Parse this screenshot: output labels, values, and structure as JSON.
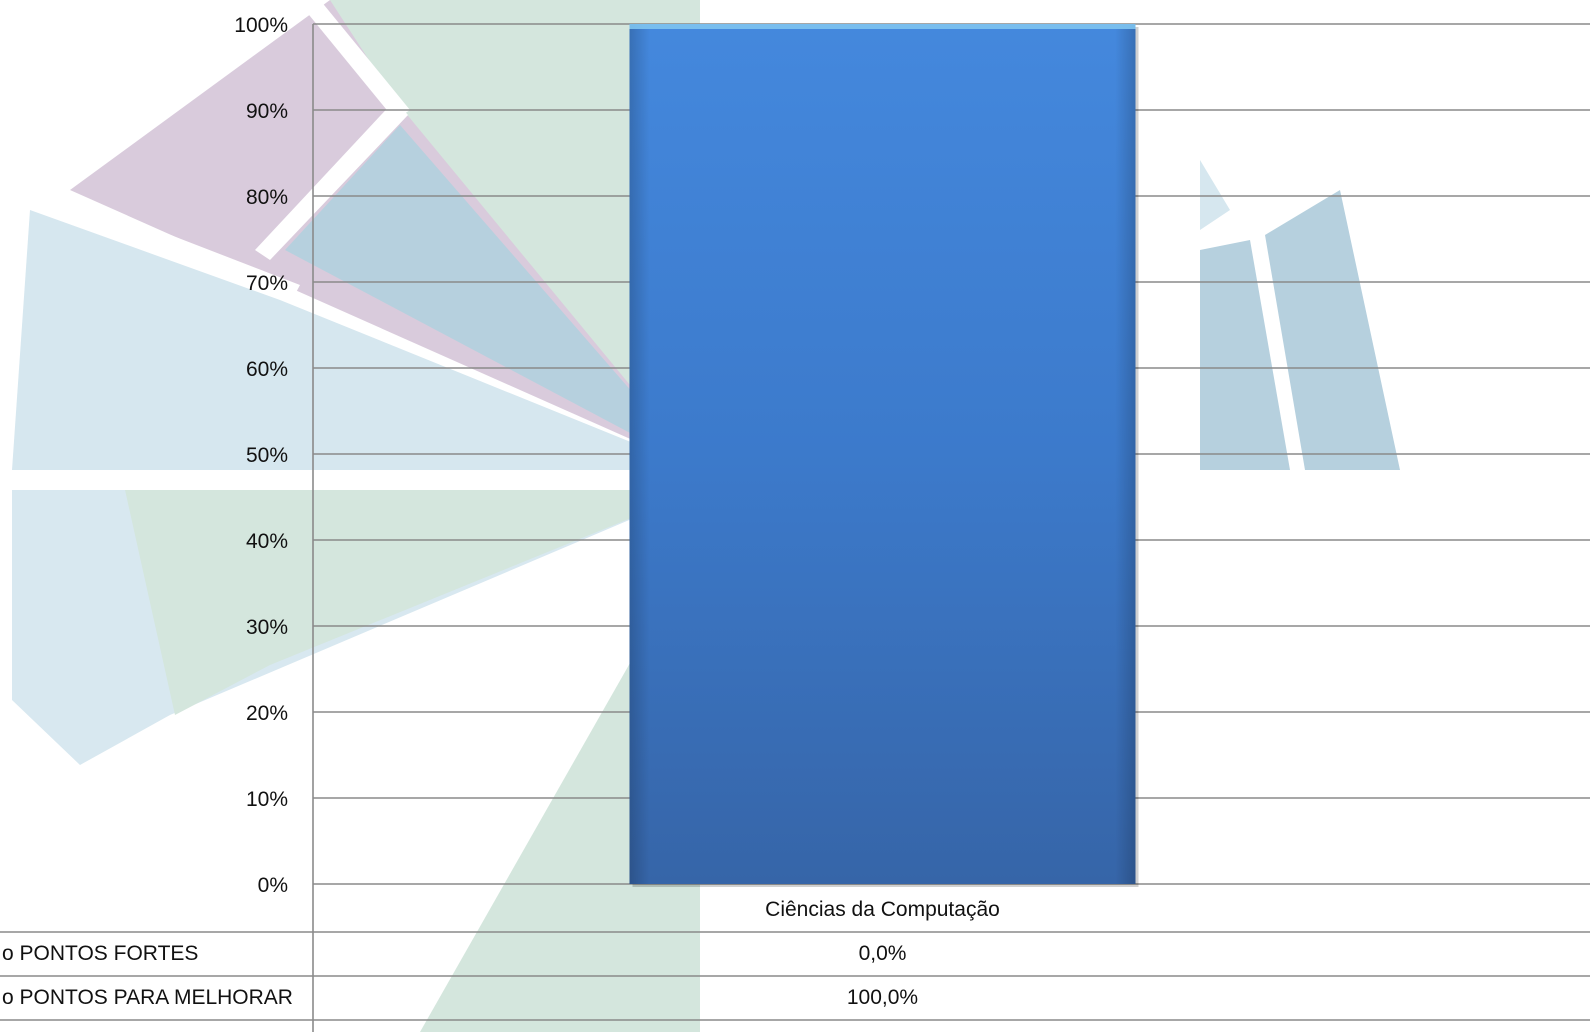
{
  "chart_data": {
    "type": "bar",
    "categories": [
      "Ciências da Computação"
    ],
    "series": [
      {
        "name": "PONTOS FORTES",
        "values": [
          0.0
        ],
        "color": "#4a86d6"
      },
      {
        "name": "PONTOS PARA MELHORAR",
        "values": [
          100.0
        ],
        "color": "#3f7fd6"
      }
    ],
    "stacked": true,
    "ylim": [
      0,
      100
    ],
    "yticks": [
      0,
      10,
      20,
      30,
      40,
      50,
      60,
      70,
      80,
      90,
      100
    ],
    "ytick_labels": [
      "0%",
      "10%",
      "20%",
      "30%",
      "40%",
      "50%",
      "60%",
      "70%",
      "80%",
      "90%",
      "100%"
    ],
    "grid": true,
    "data_table": {
      "row_labels": [
        "o PONTOS FORTES",
        "o PONTOS PARA MELHORAR"
      ],
      "cells": [
        [
          "0,0%"
        ],
        [
          "100,0%"
        ]
      ]
    }
  }
}
